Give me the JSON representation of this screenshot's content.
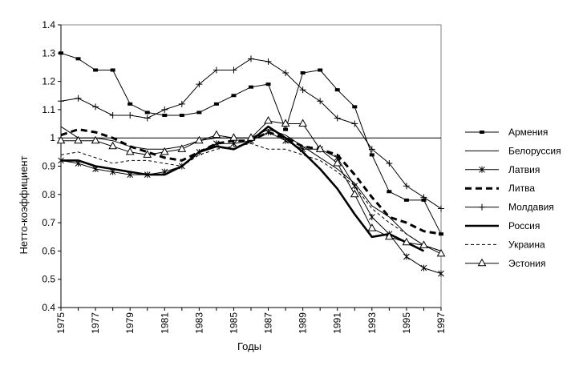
{
  "chart_data": {
    "type": "line",
    "xlabel": "Годы",
    "ylabel": "Нетто-коэффициент",
    "ylim": [
      0.4,
      1.4
    ],
    "xlim": [
      1975,
      1997
    ],
    "x_tick_labels": [
      "1975",
      "1977",
      "1979",
      "1981",
      "1983",
      "1985",
      "1987",
      "1989",
      "1991",
      "1993",
      "1995",
      "1997"
    ],
    "y_tick_labels": [
      "0.4",
      "0.5",
      "0.6",
      "0.7",
      "0.8",
      "0.9",
      "1",
      "1.1",
      "1.2",
      "1.3",
      "1.4"
    ],
    "reference_line": 1.0,
    "grid": false,
    "legend_position": "right",
    "series": [
      {
        "name": "Армения",
        "style": "solid-square-markers",
        "x": [
          1975,
          1976,
          1977,
          1978,
          1979,
          1980,
          1981,
          1982,
          1983,
          1984,
          1985,
          1986,
          1987,
          1988,
          1989,
          1990,
          1991,
          1992,
          1993,
          1994,
          1995,
          1996,
          1997
        ],
        "y": [
          1.3,
          1.28,
          1.24,
          1.24,
          1.12,
          1.09,
          1.08,
          1.08,
          1.09,
          1.12,
          1.15,
          1.18,
          1.19,
          1.03,
          1.23,
          1.24,
          1.17,
          1.11,
          0.94,
          0.81,
          0.78,
          0.78,
          0.66
        ]
      },
      {
        "name": "Белоруссия",
        "style": "thin-solid",
        "x": [
          1975,
          1976,
          1977,
          1978,
          1979,
          1980,
          1981,
          1982,
          1983,
          1984,
          1985,
          1986,
          1987,
          1988,
          1989,
          1990,
          1991,
          1992,
          1993,
          1994,
          1995,
          1996,
          1997
        ],
        "y": [
          1.04,
          1.0,
          1.0,
          0.99,
          0.97,
          0.96,
          0.96,
          0.97,
          0.99,
          1.0,
          1.0,
          1.0,
          1.03,
          1.01,
          0.97,
          0.93,
          0.89,
          0.84,
          0.76,
          0.72,
          0.66,
          0.62,
          0.6
        ]
      },
      {
        "name": "Латвия",
        "style": "star-markers",
        "x": [
          1975,
          1976,
          1977,
          1978,
          1979,
          1980,
          1981,
          1982,
          1983,
          1984,
          1985,
          1986,
          1987,
          1988,
          1989,
          1990,
          1991,
          1992,
          1993,
          1994,
          1995,
          1996,
          1997
        ],
        "y": [
          0.92,
          0.91,
          0.89,
          0.88,
          0.87,
          0.87,
          0.88,
          0.9,
          0.95,
          0.98,
          0.98,
          0.99,
          1.02,
          0.99,
          0.96,
          0.96,
          0.93,
          0.83,
          0.72,
          0.66,
          0.58,
          0.54,
          0.52
        ]
      },
      {
        "name": "Литва",
        "style": "thick-dashed",
        "x": [
          1975,
          1976,
          1977,
          1978,
          1979,
          1980,
          1981,
          1982,
          1983,
          1984,
          1985,
          1986,
          1987,
          1988,
          1989,
          1990,
          1991,
          1992,
          1993,
          1994,
          1995,
          1996,
          1997
        ],
        "y": [
          1.01,
          1.03,
          1.02,
          1.0,
          0.97,
          0.95,
          0.93,
          0.92,
          0.95,
          0.98,
          0.99,
          0.99,
          1.02,
          1.0,
          0.97,
          0.96,
          0.94,
          0.87,
          0.79,
          0.72,
          0.7,
          0.67,
          0.66
        ]
      },
      {
        "name": "Молдавия",
        "style": "plus-markers",
        "x": [
          1975,
          1976,
          1977,
          1978,
          1979,
          1980,
          1981,
          1982,
          1983,
          1984,
          1985,
          1986,
          1987,
          1988,
          1989,
          1990,
          1991,
          1992,
          1993,
          1994,
          1995,
          1996,
          1997
        ],
        "y": [
          1.13,
          1.14,
          1.11,
          1.08,
          1.08,
          1.07,
          1.1,
          1.12,
          1.19,
          1.24,
          1.24,
          1.28,
          1.27,
          1.23,
          1.17,
          1.13,
          1.07,
          1.05,
          0.96,
          0.91,
          0.83,
          0.79,
          0.75
        ]
      },
      {
        "name": "Россия",
        "style": "thick-solid",
        "x": [
          1975,
          1976,
          1977,
          1978,
          1979,
          1980,
          1981,
          1982,
          1983,
          1984,
          1985,
          1986,
          1987,
          1988,
          1989,
          1990,
          1991,
          1992,
          1993,
          1994,
          1995,
          1996
        ],
        "y": [
          0.92,
          0.92,
          0.9,
          0.89,
          0.88,
          0.87,
          0.87,
          0.9,
          0.95,
          0.97,
          0.96,
          0.99,
          1.04,
          1.0,
          0.95,
          0.89,
          0.82,
          0.73,
          0.65,
          0.66,
          0.63,
          0.6
        ]
      },
      {
        "name": "Украина",
        "style": "thin-dashed",
        "x": [
          1975,
          1976,
          1977,
          1978,
          1979,
          1980,
          1981,
          1982,
          1983,
          1984,
          1985,
          1986,
          1987,
          1988,
          1989,
          1990,
          1991,
          1992,
          1993,
          1994,
          1995,
          1996,
          1997
        ],
        "y": [
          0.94,
          0.95,
          0.93,
          0.91,
          0.92,
          0.92,
          0.91,
          0.9,
          0.94,
          0.96,
          0.97,
          0.98,
          0.96,
          0.96,
          0.94,
          0.92,
          0.88,
          0.83,
          0.75,
          0.7,
          0.66,
          0.62,
          0.6
        ]
      },
      {
        "name": "Эстония",
        "style": "triangle-markers",
        "x": [
          1975,
          1976,
          1977,
          1978,
          1979,
          1980,
          1981,
          1982,
          1983,
          1984,
          1985,
          1986,
          1987,
          1988,
          1989,
          1990,
          1991,
          1992,
          1993,
          1994,
          1995,
          1996,
          1997
        ],
        "y": [
          0.99,
          0.99,
          0.99,
          0.97,
          0.95,
          0.94,
          0.95,
          0.96,
          0.99,
          1.01,
          1.0,
          1.0,
          1.06,
          1.05,
          1.05,
          0.96,
          0.91,
          0.8,
          0.68,
          0.65,
          0.63,
          0.62,
          0.59
        ]
      }
    ]
  }
}
